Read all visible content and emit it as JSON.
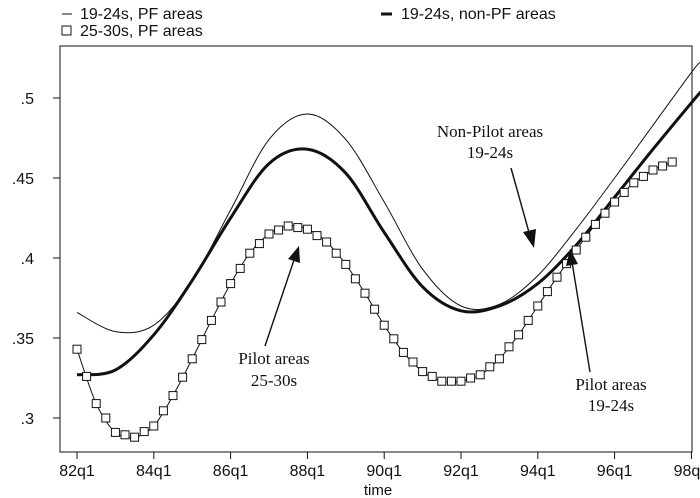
{
  "chart_data": {
    "type": "line",
    "title": "",
    "xlabel": "time",
    "ylabel": "",
    "x_ticks": [
      "82q1",
      "84q1",
      "86q1",
      "88q1",
      "90q1",
      "92q1",
      "94q1",
      "96q1",
      "98q1"
    ],
    "y_ticks": [
      ".3",
      ".35",
      ".4",
      ".45",
      ".5"
    ],
    "ylim": [
      0.28,
      0.53
    ],
    "x_range_quarters_since_82q1": [
      0,
      65
    ],
    "grid": false,
    "legend_position": "top",
    "legend": [
      {
        "label": "19-24s, PF areas",
        "style": "thin-line"
      },
      {
        "label": "19-24s, non-PF areas",
        "style": "thick-line"
      },
      {
        "label": "25-30s, PF areas",
        "style": "square-markers"
      }
    ],
    "series": [
      {
        "name": "19-24s, PF areas",
        "style": "thin",
        "x": [
          "82q1",
          "83q1",
          "84q1",
          "85q1",
          "86q1",
          "87q1",
          "88q1",
          "89q1",
          "90q1",
          "91q1",
          "92q1",
          "93q1",
          "94q1",
          "95q1",
          "96q1",
          "97q1",
          "98q1",
          "98q2"
        ],
        "values": [
          0.366,
          0.354,
          0.358,
          0.386,
          0.43,
          0.474,
          0.49,
          0.474,
          0.435,
          0.393,
          0.37,
          0.371,
          0.389,
          0.418,
          0.45,
          0.483,
          0.516,
          0.523
        ]
      },
      {
        "name": "19-24s, non-PF areas",
        "style": "thick",
        "x": [
          "82q1",
          "83q1",
          "84q1",
          "85q1",
          "86q1",
          "87q1",
          "88q1",
          "89q1",
          "90q1",
          "91q1",
          "92q1",
          "93q1",
          "94q1",
          "95q1",
          "96q1",
          "97q1",
          "98q1",
          "98q2"
        ],
        "values": [
          0.327,
          0.33,
          0.352,
          0.386,
          0.425,
          0.459,
          0.468,
          0.453,
          0.416,
          0.382,
          0.367,
          0.37,
          0.384,
          0.408,
          0.438,
          0.468,
          0.497,
          0.504
        ]
      },
      {
        "name": "25-30s, PF areas",
        "style": "markers",
        "x": [
          "82q1",
          "82q3",
          "83q1",
          "83q3",
          "84q1",
          "84q3",
          "85q1",
          "85q3",
          "86q1",
          "86q3",
          "87q1",
          "87q3",
          "88q1",
          "88q3",
          "89q1",
          "89q3",
          "90q1",
          "90q3",
          "91q1",
          "91q3",
          "92q1",
          "92q3",
          "93q1",
          "93q3",
          "94q1",
          "94q3",
          "95q1",
          "95q3",
          "96q1",
          "96q3",
          "97q1",
          "97q3"
        ],
        "values": [
          0.343,
          0.309,
          0.291,
          0.288,
          0.295,
          0.314,
          0.337,
          0.361,
          0.384,
          0.403,
          0.415,
          0.42,
          0.418,
          0.41,
          0.396,
          0.378,
          0.358,
          0.341,
          0.329,
          0.323,
          0.323,
          0.327,
          0.337,
          0.352,
          0.37,
          0.388,
          0.405,
          0.421,
          0.435,
          0.447,
          0.455,
          0.46
        ]
      }
    ],
    "annotations": [
      {
        "text": [
          "Non-Pilot areas",
          "19-24s"
        ],
        "points_to": "19-24s, non-PF areas"
      },
      {
        "text": [
          "Pilot areas",
          "25-30s"
        ],
        "points_to": "25-30s, PF areas"
      },
      {
        "text": [
          "Pilot areas",
          "19-24s"
        ],
        "points_to": "19-24s, PF areas"
      }
    ]
  }
}
